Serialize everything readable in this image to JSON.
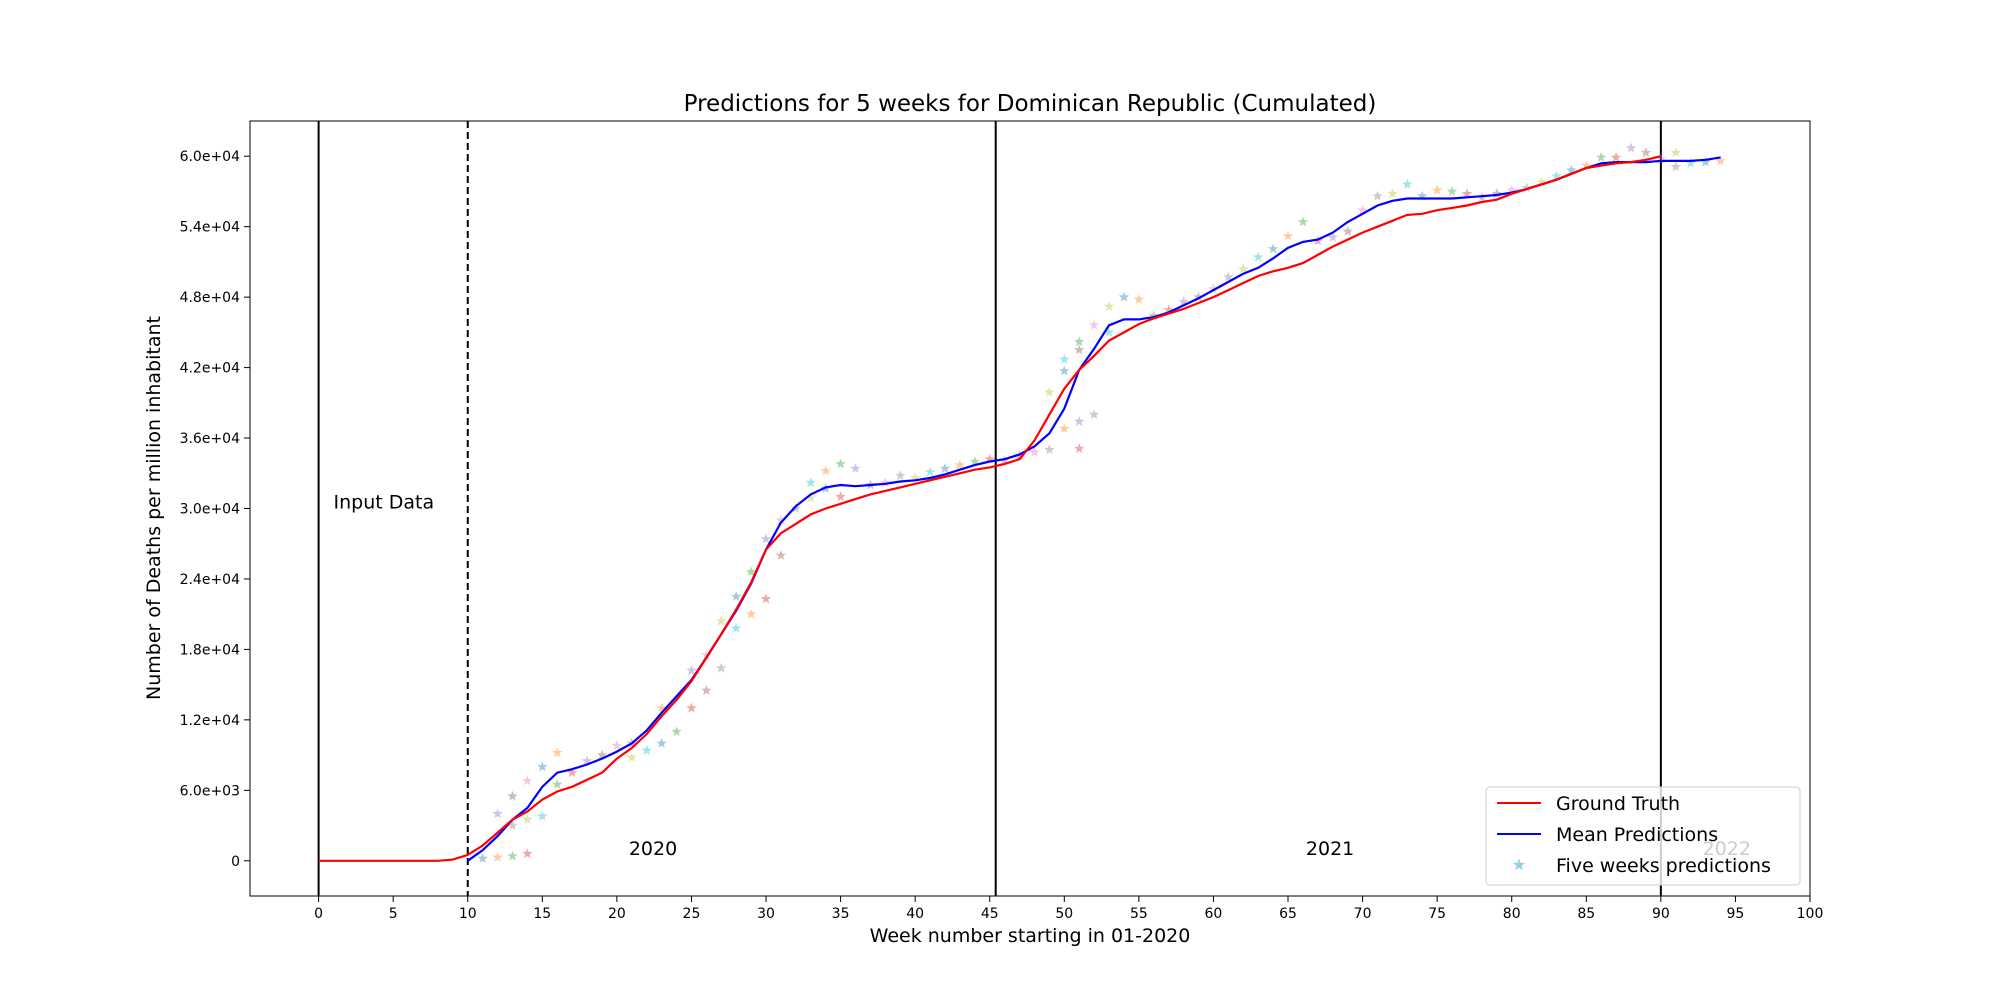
{
  "chart_data": {
    "type": "line",
    "title": "Predictions for 5 weeks for Dominican Republic (Cumulated)",
    "xlabel": "Week number starting in 01-2020",
    "ylabel": "Number of Deaths per million inhabitant",
    "xlim": [
      -4.6,
      100
    ],
    "ylim": [
      -3000,
      63000
    ],
    "xticks": [
      0,
      5,
      10,
      15,
      20,
      25,
      30,
      35,
      40,
      45,
      50,
      55,
      60,
      65,
      70,
      75,
      80,
      85,
      90,
      95,
      100
    ],
    "yticks": [
      0,
      6000,
      12000,
      18000,
      24000,
      30000,
      36000,
      42000,
      48000,
      54000,
      60000
    ],
    "ytick_labels": [
      "0",
      "6.0e+03",
      "1.2e+04",
      "1.8e+04",
      "2.4e+04",
      "3.0e+04",
      "3.6e+04",
      "4.2e+04",
      "4.8e+04",
      "5.4e+04",
      "6.0e+04"
    ],
    "grid": false,
    "legend_position": "bottom-right",
    "vlines": [
      {
        "x": 0,
        "style": "solid"
      },
      {
        "x": 10,
        "style": "dashed"
      },
      {
        "x": 45.4,
        "style": "solid"
      },
      {
        "x": 90,
        "style": "solid"
      }
    ],
    "annotations": [
      {
        "text": "Input Data",
        "x": 1,
        "y": 30000
      },
      {
        "text": "2020",
        "x": 20.8,
        "y": 500
      },
      {
        "text": "2021",
        "x": 66.2,
        "y": 500
      },
      {
        "text": "2022",
        "x": 92.8,
        "y": 500,
        "faded": true
      }
    ],
    "series": [
      {
        "name": "Ground Truth",
        "color": "#ff0000",
        "x": [
          0,
          1,
          2,
          3,
          4,
          5,
          6,
          7,
          8,
          9,
          10,
          11,
          12,
          13,
          14,
          15,
          16,
          17,
          18,
          19,
          20,
          21,
          22,
          23,
          24,
          25,
          26,
          27,
          28,
          29,
          30,
          31,
          32,
          33,
          34,
          35,
          36,
          37,
          38,
          39,
          40,
          41,
          42,
          43,
          44,
          45,
          46,
          47,
          48,
          49,
          50,
          51,
          52,
          53,
          54,
          55,
          56,
          57,
          58,
          59,
          60,
          61,
          62,
          63,
          64,
          65,
          66,
          67,
          68,
          69,
          70,
          71,
          72,
          73,
          74,
          75,
          76,
          77,
          78,
          79,
          80,
          81,
          82,
          83,
          84,
          85,
          86,
          87,
          88,
          89,
          90
        ],
        "values": [
          0,
          0,
          0,
          0,
          0,
          0,
          0,
          0,
          0,
          100,
          500,
          1300,
          2400,
          3500,
          4200,
          5200,
          5900,
          6300,
          6900,
          7500,
          8700,
          9600,
          10800,
          12300,
          13700,
          15300,
          17300,
          19300,
          21400,
          23700,
          26500,
          27900,
          28700,
          29500,
          30000,
          30400,
          30800,
          31200,
          31500,
          31800,
          32100,
          32400,
          32700,
          33000,
          33300,
          33500,
          33800,
          34200,
          35800,
          38000,
          40200,
          41800,
          43000,
          44300,
          45000,
          45700,
          46200,
          46600,
          47000,
          47500,
          48000,
          48600,
          49200,
          49800,
          50200,
          50500,
          50900,
          51600,
          52300,
          52900,
          53500,
          54000,
          54500,
          55000,
          55100,
          55400,
          55600,
          55800,
          56100,
          56300,
          56800,
          57200,
          57600,
          58000,
          58500,
          59000,
          59200,
          59400,
          59500,
          59700,
          60000
        ]
      },
      {
        "name": "Mean Predictions",
        "color": "#0000ff",
        "x": [
          10,
          11,
          12,
          13,
          14,
          15,
          16,
          17,
          18,
          19,
          20,
          21,
          22,
          23,
          24,
          25,
          26,
          27,
          28,
          29,
          30,
          31,
          32,
          33,
          34,
          35,
          36,
          37,
          38,
          39,
          40,
          41,
          42,
          43,
          44,
          45,
          46,
          47,
          48,
          49,
          50,
          51,
          52,
          53,
          54,
          55,
          56,
          57,
          58,
          59,
          60,
          61,
          62,
          63,
          64,
          65,
          66,
          67,
          68,
          69,
          70,
          71,
          72,
          73,
          74,
          75,
          76,
          77,
          78,
          79,
          80,
          81,
          82,
          83,
          84,
          85,
          86,
          87,
          88,
          89,
          90,
          91,
          92,
          93,
          94
        ],
        "values": [
          0,
          900,
          2100,
          3500,
          4500,
          6300,
          7500,
          7800,
          8200,
          8700,
          9300,
          10000,
          11100,
          12600,
          14000,
          15400,
          17300,
          19300,
          21300,
          23600,
          26500,
          28800,
          30200,
          31200,
          31800,
          32000,
          31900,
          32000,
          32100,
          32300,
          32400,
          32600,
          32900,
          33300,
          33700,
          34000,
          34200,
          34600,
          35300,
          36400,
          38500,
          41800,
          43600,
          45600,
          46100,
          46100,
          46300,
          46700,
          47300,
          47900,
          48600,
          49300,
          50000,
          50500,
          51300,
          52200,
          52700,
          52900,
          53500,
          54400,
          55100,
          55800,
          56200,
          56400,
          56400,
          56400,
          56400,
          56500,
          56600,
          56700,
          56900,
          57200,
          57600,
          58000,
          58500,
          59000,
          59400,
          59500,
          59500,
          59500,
          59600,
          59600,
          59600,
          59700,
          59900
        ]
      }
    ],
    "scatter_series": {
      "name": "Five weeks predictions",
      "legend_color": "#8ec9e6",
      "marker": "star",
      "palette": [
        "#1f77b4",
        "#ff7f0e",
        "#2ca02c",
        "#d62728",
        "#9467bd",
        "#8c564b",
        "#e377c2",
        "#7f7f7f",
        "#bcbd22",
        "#17becf"
      ],
      "points": [
        [
          11,
          200
        ],
        [
          12,
          300
        ],
        [
          13,
          400
        ],
        [
          14,
          600
        ],
        [
          12,
          4000
        ],
        [
          13,
          5500
        ],
        [
          14,
          6800
        ],
        [
          13,
          3000
        ],
        [
          14,
          3500
        ],
        [
          15,
          3800
        ],
        [
          15,
          8000
        ],
        [
          16,
          9200
        ],
        [
          16,
          6500
        ],
        [
          17,
          7500
        ],
        [
          18,
          8500
        ],
        [
          19,
          9000
        ],
        [
          20,
          9800
        ],
        [
          21,
          10000
        ],
        [
          21,
          8800
        ],
        [
          22,
          9400
        ],
        [
          23,
          10000
        ],
        [
          23,
          13000
        ],
        [
          24,
          11000
        ],
        [
          25,
          13000
        ],
        [
          25,
          16200
        ],
        [
          26,
          14500
        ],
        [
          26,
          17500
        ],
        [
          27,
          16400
        ],
        [
          27,
          20400
        ],
        [
          28,
          19800
        ],
        [
          28,
          22500
        ],
        [
          29,
          21000
        ],
        [
          29,
          24600
        ],
        [
          30,
          22300
        ],
        [
          30,
          27400
        ],
        [
          31,
          26000
        ],
        [
          31,
          29000
        ],
        [
          32,
          30000
        ],
        [
          33,
          30900
        ],
        [
          33,
          32200
        ],
        [
          34,
          31700
        ],
        [
          34,
          33200
        ],
        [
          35,
          33800
        ],
        [
          35,
          31000
        ],
        [
          36,
          33400
        ],
        [
          37,
          32000
        ],
        [
          38,
          32200
        ],
        [
          39,
          32800
        ],
        [
          40,
          32600
        ],
        [
          41,
          33100
        ],
        [
          42,
          33400
        ],
        [
          43,
          33700
        ],
        [
          44,
          34000
        ],
        [
          45,
          34200
        ],
        [
          46,
          34100
        ],
        [
          47,
          34500
        ],
        [
          48,
          34800
        ],
        [
          49,
          35000
        ],
        [
          49,
          39900
        ],
        [
          50,
          42700
        ],
        [
          50,
          41700
        ],
        [
          50,
          36800
        ],
        [
          51,
          44200
        ],
        [
          51,
          35100
        ],
        [
          51,
          37400
        ],
        [
          51,
          43500
        ],
        [
          52,
          45600
        ],
        [
          52,
          38000
        ],
        [
          53,
          47200
        ],
        [
          53,
          45000
        ],
        [
          54,
          48000
        ],
        [
          55,
          47800
        ],
        [
          56,
          46400
        ],
        [
          57,
          46900
        ],
        [
          58,
          47600
        ],
        [
          59,
          48000
        ],
        [
          60,
          48700
        ],
        [
          61,
          49700
        ],
        [
          62,
          50400
        ],
        [
          63,
          51400
        ],
        [
          64,
          52100
        ],
        [
          65,
          53200
        ],
        [
          66,
          54400
        ],
        [
          67,
          52800
        ],
        [
          68,
          53100
        ],
        [
          69,
          53600
        ],
        [
          70,
          55400
        ],
        [
          71,
          56600
        ],
        [
          72,
          56800
        ],
        [
          73,
          57600
        ],
        [
          74,
          56600
        ],
        [
          75,
          57100
        ],
        [
          76,
          57000
        ],
        [
          77,
          56800
        ],
        [
          78,
          56500
        ],
        [
          79,
          56800
        ],
        [
          80,
          57100
        ],
        [
          81,
          57300
        ],
        [
          82,
          57800
        ],
        [
          83,
          58300
        ],
        [
          84,
          58800
        ],
        [
          85,
          59200
        ],
        [
          86,
          59900
        ],
        [
          87,
          59900
        ],
        [
          88,
          60700
        ],
        [
          89,
          60300
        ],
        [
          90,
          59800
        ],
        [
          91,
          59100
        ],
        [
          91,
          60300
        ],
        [
          92,
          59400
        ],
        [
          93,
          59500
        ],
        [
          94,
          59600
        ]
      ]
    }
  }
}
